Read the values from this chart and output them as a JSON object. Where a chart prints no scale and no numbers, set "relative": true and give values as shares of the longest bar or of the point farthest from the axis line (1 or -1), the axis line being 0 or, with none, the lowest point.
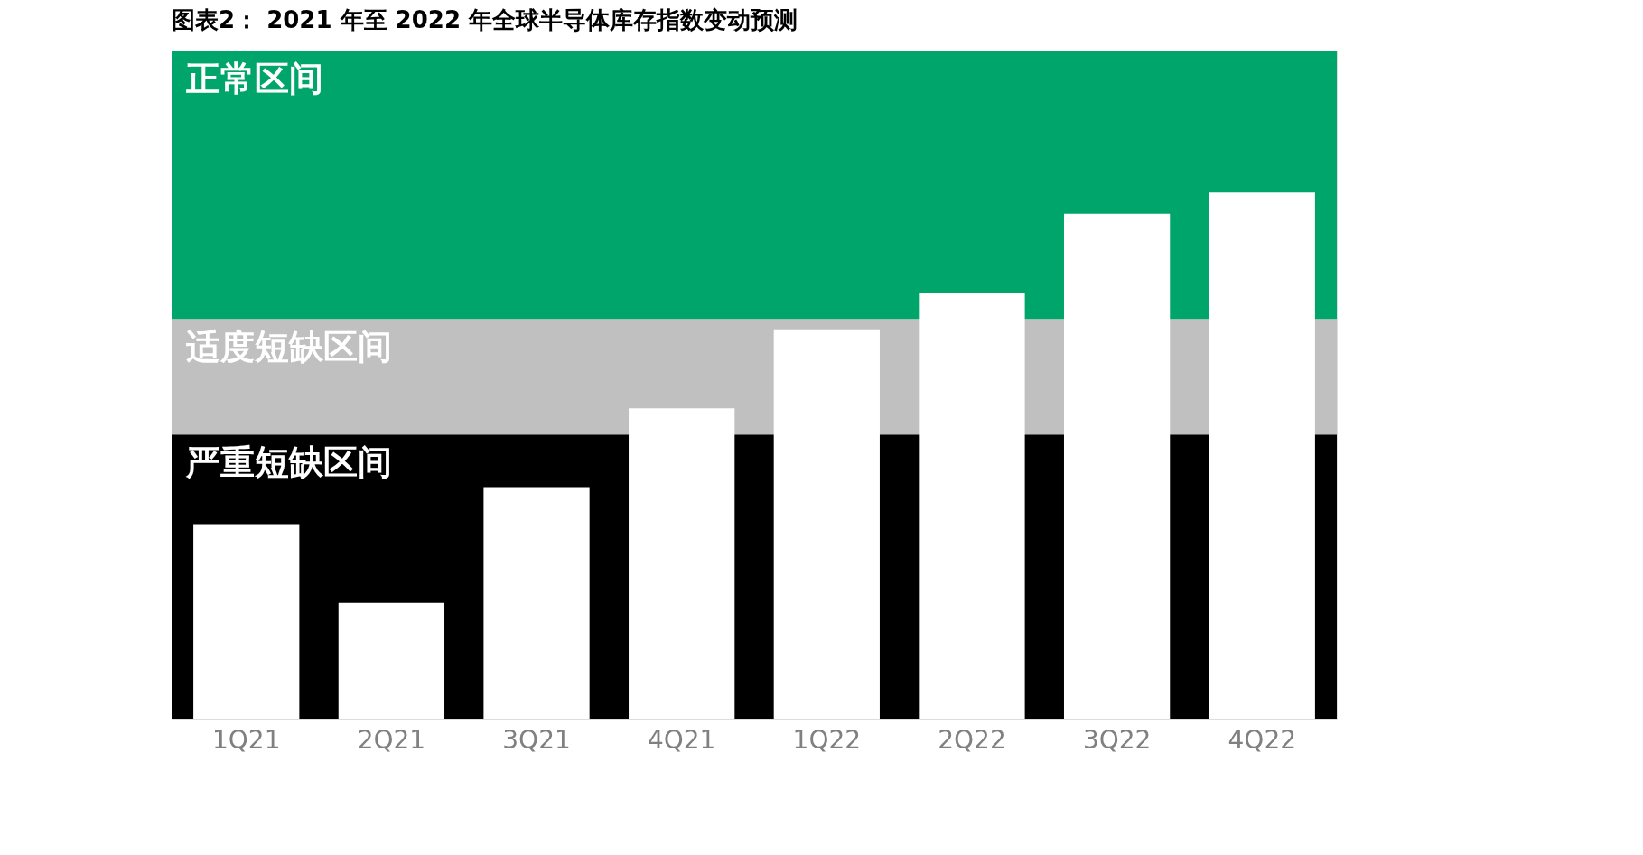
{
  "chart_data": {
    "type": "bar",
    "title": "图表2： 2021 年至 2022 年全球半导体库存指数变动预测",
    "categories": [
      "1Q21",
      "2Q21",
      "3Q21",
      "4Q21",
      "1Q22",
      "2Q22",
      "3Q22",
      "4Q22"
    ],
    "values": [
      0.37,
      0.22,
      0.44,
      0.59,
      0.74,
      0.81,
      0.96,
      1
    ],
    "color": "#ffffff",
    "relative": true,
    "bands": [
      {
        "axis": "y",
        "from": 0,
        "to": 0.54,
        "label": "严重短缺区间",
        "color": "#000000"
      },
      {
        "axis": "y",
        "from": 0.54,
        "to": 0.76,
        "label": "适度短缺区间",
        "color": "#c0c0c0"
      },
      {
        "axis": "y",
        "from": 0.76,
        "to": 1.27,
        "label": "正常区间",
        "color": "#00a56c"
      }
    ]
  }
}
